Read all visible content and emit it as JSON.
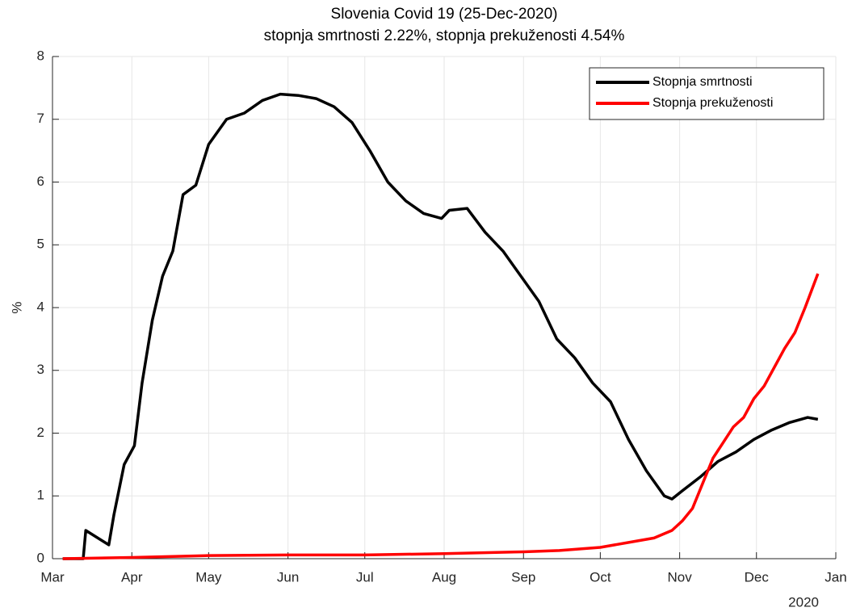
{
  "chart_data": {
    "type": "line",
    "title": "Slovenia Covid 19 (25-Dec-2020)",
    "subtitle": "stopnja smrtnosti 2.22%, stopnja prekuženosti 4.54%",
    "y_label": "%",
    "x_year_label": "2020",
    "xlim": [
      "2020-03-01",
      "2021-01-01"
    ],
    "xticks": [
      {
        "value": "2020-03-01",
        "label": "Mar"
      },
      {
        "value": "2020-04-01",
        "label": "Apr"
      },
      {
        "value": "2020-05-01",
        "label": "May"
      },
      {
        "value": "2020-06-01",
        "label": "Jun"
      },
      {
        "value": "2020-07-01",
        "label": "Jul"
      },
      {
        "value": "2020-08-01",
        "label": "Aug"
      },
      {
        "value": "2020-09-01",
        "label": "Sep"
      },
      {
        "value": "2020-10-01",
        "label": "Oct"
      },
      {
        "value": "2020-11-01",
        "label": "Nov"
      },
      {
        "value": "2020-12-01",
        "label": "Dec"
      },
      {
        "value": "2021-01-01",
        "label": "Jan"
      }
    ],
    "ylim": [
      0,
      8
    ],
    "yticks": [
      0,
      1,
      2,
      3,
      4,
      5,
      6,
      7,
      8
    ],
    "grid": true,
    "legend_position": "northeast",
    "series": [
      {
        "name": "Stopnja smrtnosti",
        "color": "#000000",
        "x": [
          "2020-03-05",
          "2020-03-13",
          "2020-03-14",
          "2020-03-23",
          "2020-03-25",
          "2020-03-29",
          "2020-04-02",
          "2020-04-05",
          "2020-04-09",
          "2020-04-13",
          "2020-04-17",
          "2020-04-21",
          "2020-04-26",
          "2020-05-01",
          "2020-05-08",
          "2020-05-15",
          "2020-05-22",
          "2020-05-29",
          "2020-06-05",
          "2020-06-12",
          "2020-06-19",
          "2020-06-26",
          "2020-07-03",
          "2020-07-10",
          "2020-07-17",
          "2020-07-24",
          "2020-07-31",
          "2020-08-03",
          "2020-08-10",
          "2020-08-17",
          "2020-08-24",
          "2020-08-31",
          "2020-09-07",
          "2020-09-14",
          "2020-09-21",
          "2020-09-28",
          "2020-10-05",
          "2020-10-12",
          "2020-10-19",
          "2020-10-26",
          "2020-10-29",
          "2020-11-02",
          "2020-11-09",
          "2020-11-16",
          "2020-11-23",
          "2020-11-30",
          "2020-12-07",
          "2020-12-14",
          "2020-12-21",
          "2020-12-25"
        ],
        "values": [
          0,
          0,
          0.45,
          0.22,
          0.7,
          1.5,
          1.8,
          2.8,
          3.8,
          4.5,
          4.9,
          5.8,
          5.95,
          6.6,
          7.0,
          7.1,
          7.3,
          7.4,
          7.38,
          7.33,
          7.2,
          6.95,
          6.5,
          6.0,
          5.7,
          5.5,
          5.42,
          5.55,
          5.58,
          5.2,
          4.9,
          4.5,
          4.1,
          3.5,
          3.2,
          2.8,
          2.5,
          1.9,
          1.4,
          1.0,
          0.95,
          1.08,
          1.3,
          1.55,
          1.7,
          1.9,
          2.05,
          2.17,
          2.25,
          2.22
        ]
      },
      {
        "name": "Stopnja prekuženosti",
        "color": "#ff0000",
        "x": [
          "2020-03-05",
          "2020-04-01",
          "2020-05-01",
          "2020-06-01",
          "2020-07-01",
          "2020-08-01",
          "2020-09-01",
          "2020-09-15",
          "2020-10-01",
          "2020-10-15",
          "2020-10-22",
          "2020-10-29",
          "2020-11-02",
          "2020-11-06",
          "2020-11-10",
          "2020-11-14",
          "2020-11-18",
          "2020-11-22",
          "2020-11-26",
          "2020-11-30",
          "2020-12-04",
          "2020-12-08",
          "2020-12-12",
          "2020-12-16",
          "2020-12-20",
          "2020-12-25"
        ],
        "values": [
          0,
          0.02,
          0.05,
          0.06,
          0.06,
          0.08,
          0.11,
          0.13,
          0.18,
          0.28,
          0.33,
          0.45,
          0.6,
          0.8,
          1.2,
          1.6,
          1.85,
          2.1,
          2.25,
          2.55,
          2.75,
          3.05,
          3.35,
          3.6,
          4.0,
          4.54
        ]
      }
    ]
  }
}
